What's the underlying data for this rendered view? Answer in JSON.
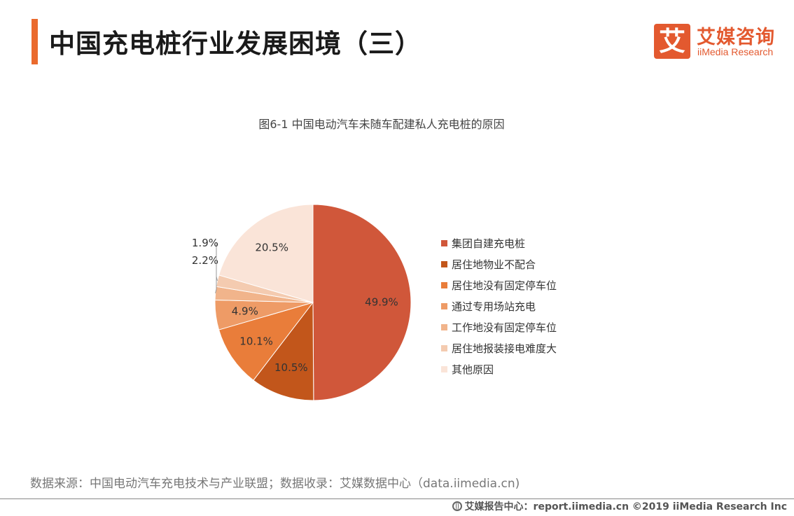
{
  "header": {
    "title": "中国充电桩行业发展困境（三）"
  },
  "logo": {
    "mark": "艾",
    "cn": "艾媒咨询",
    "en": "iiMedia Research"
  },
  "chart_data": {
    "type": "pie",
    "title": "图6-1 中国电动汽车未随车配建私人充电桩的原因",
    "categories": [
      "集团自建充电桩",
      "居住地物业不配合",
      "居住地没有固定停车位",
      "通过专用场站充电",
      "工作地没有固定停车位",
      "居住地报装接电难度大",
      "其他原因"
    ],
    "values": [
      49.9,
      10.5,
      10.1,
      4.9,
      2.2,
      1.9,
      20.5
    ],
    "labels": [
      "49.9%",
      "10.5%",
      "10.1%",
      "4.9%",
      "2.2%",
      "1.9%",
      "20.5%"
    ],
    "colors": [
      "#d0573a",
      "#c2561b",
      "#e97d3a",
      "#ee9b66",
      "#f1b48b",
      "#f4cbb0",
      "#fae4d8"
    ],
    "legend_position": "right"
  },
  "source": "数据来源：中国电动汽车充电技术与产业联盟；数据收录：艾媒数据中心（data.iimedia.cn)",
  "footer": {
    "icon": "globe-icon",
    "text": "艾媒报告中心：report.iimedia.cn  ©2019  iiMedia Research  Inc"
  }
}
